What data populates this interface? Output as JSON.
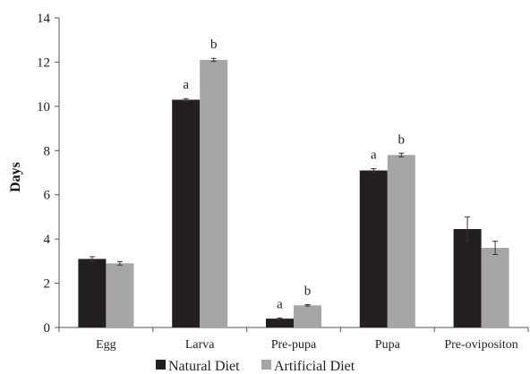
{
  "chart_data": {
    "type": "bar",
    "ylabel": "Days",
    "xlabel": "",
    "ylim": [
      0,
      14
    ],
    "yticks": [
      0,
      2,
      4,
      6,
      8,
      10,
      12,
      14
    ],
    "grid": false,
    "legend_position": "bottom",
    "categories": [
      "Egg",
      "Larva",
      "Pre-pupa",
      "Pupa",
      "Pre-ovipositon"
    ],
    "series": [
      {
        "name": "Natural Diet",
        "color": "#231f20",
        "values": [
          3.1,
          10.3,
          0.4,
          7.1,
          4.45
        ],
        "errors": [
          0.1,
          0.05,
          0.03,
          0.08,
          0.55
        ],
        "significance": [
          "",
          "a",
          "a",
          "a",
          ""
        ]
      },
      {
        "name": "Artificial Diet",
        "color": "#a6a6a6",
        "values": [
          2.9,
          12.1,
          1.0,
          7.8,
          3.6
        ],
        "errors": [
          0.08,
          0.07,
          0.03,
          0.08,
          0.3
        ],
        "significance": [
          "",
          "b",
          "b",
          "b",
          ""
        ]
      }
    ]
  }
}
